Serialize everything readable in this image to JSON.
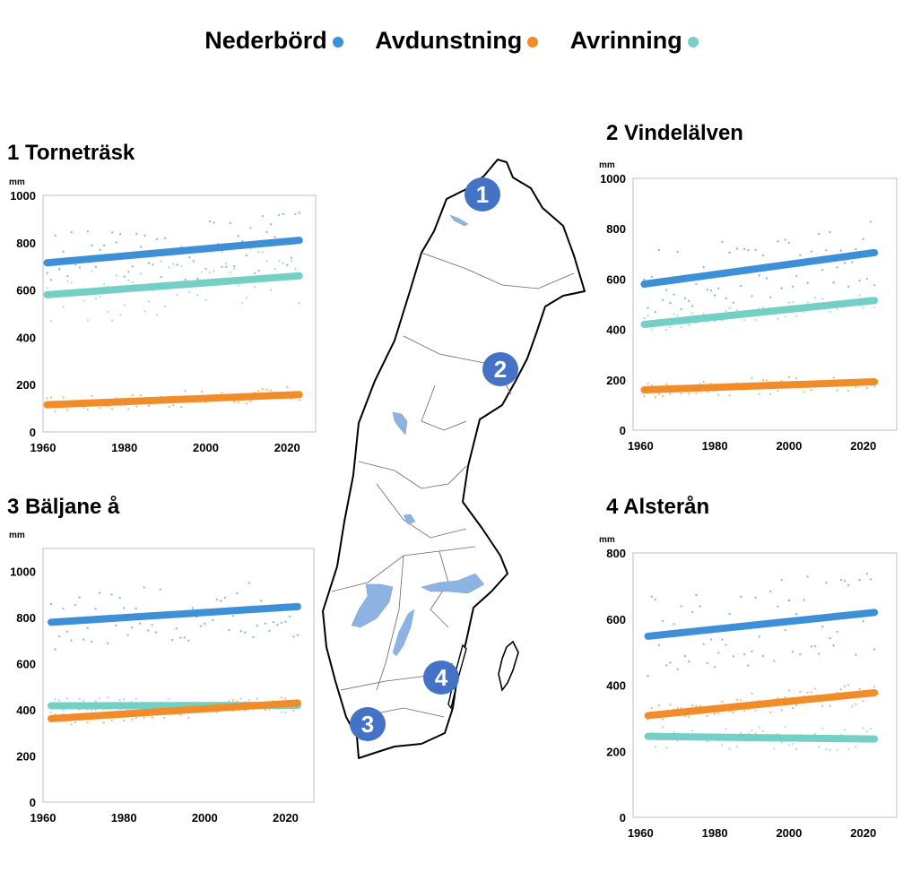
{
  "legend": [
    {
      "label": "Nederbörd",
      "color": "#3d8fd8"
    },
    {
      "label": "Avdunstning",
      "color": "#f28c28"
    },
    {
      "label": "Avrinning",
      "color": "#74d0c4"
    }
  ],
  "map_markers": [
    "1",
    "2",
    "3",
    "4"
  ],
  "marker_color": "#4472c4",
  "lake_color": "#8db3e2",
  "chart_data": [
    {
      "type": "scatter",
      "title": "1 Torneträsk",
      "ylabel": "mm",
      "xlim": [
        1960,
        2027
      ],
      "ylim": [
        0,
        1000
      ],
      "xticks": [
        "1960",
        "1980",
        "2000",
        "2020"
      ],
      "yticks": [
        "0",
        "200",
        "400",
        "600",
        "800",
        "1000"
      ],
      "trend_x": [
        1961,
        2023
      ],
      "series": [
        {
          "name": "Nederbörd",
          "color": "#3d8fd8",
          "trend": [
            715,
            810
          ]
        },
        {
          "name": "Avrinning",
          "color": "#74d0c4",
          "trend": [
            580,
            660
          ]
        },
        {
          "name": "Avdunstning",
          "color": "#f28c28",
          "trend": [
            115,
            158
          ]
        }
      ]
    },
    {
      "type": "scatter",
      "title": "2 Vindelälven",
      "ylabel": "mm",
      "xlim": [
        1958,
        2029
      ],
      "ylim": [
        0,
        1000
      ],
      "xticks": [
        "1960",
        "1980",
        "2000",
        "2020"
      ],
      "yticks": [
        "0",
        "200",
        "400",
        "600",
        "800",
        "1000"
      ],
      "trend_x": [
        1961,
        2023
      ],
      "series": [
        {
          "name": "Nederbörd",
          "color": "#3d8fd8",
          "trend": [
            580,
            705
          ]
        },
        {
          "name": "Avrinning",
          "color": "#74d0c4",
          "trend": [
            420,
            515
          ]
        },
        {
          "name": "Avdunstning",
          "color": "#f28c28",
          "trend": [
            160,
            192
          ]
        }
      ]
    },
    {
      "type": "scatter",
      "title": "3 Bäljane å",
      "ylabel": "mm",
      "xlim": [
        1960,
        2027
      ],
      "ylim": [
        0,
        1100
      ],
      "xticks": [
        "1960",
        "1980",
        "2000",
        "2020"
      ],
      "yticks": [
        "0",
        "200",
        "400",
        "600",
        "800",
        "1000"
      ],
      "trend_x": [
        1962,
        2023
      ],
      "series": [
        {
          "name": "Nederbörd",
          "color": "#3d8fd8",
          "trend": [
            780,
            848
          ]
        },
        {
          "name": "Avrinning",
          "color": "#74d0c4",
          "trend": [
            418,
            420
          ]
        },
        {
          "name": "Avdunstning",
          "color": "#f28c28",
          "trend": [
            362,
            430
          ]
        }
      ]
    },
    {
      "type": "scatter",
      "title": "4 Alsterån",
      "ylabel": "mm",
      "xlim": [
        1958,
        2029
      ],
      "ylim": [
        0,
        800
      ],
      "xticks": [
        "1960",
        "1980",
        "2000",
        "2020"
      ],
      "yticks": [
        "0",
        "200",
        "400",
        "600",
        "800"
      ],
      "trend_x": [
        1962,
        2023
      ],
      "series": [
        {
          "name": "Nederbörd",
          "color": "#3d8fd8",
          "trend": [
            548,
            620
          ]
        },
        {
          "name": "Avdunstning",
          "color": "#f28c28",
          "trend": [
            308,
            377
          ]
        },
        {
          "name": "Avrinning",
          "color": "#74d0c4",
          "trend": [
            245,
            237
          ]
        }
      ]
    }
  ]
}
